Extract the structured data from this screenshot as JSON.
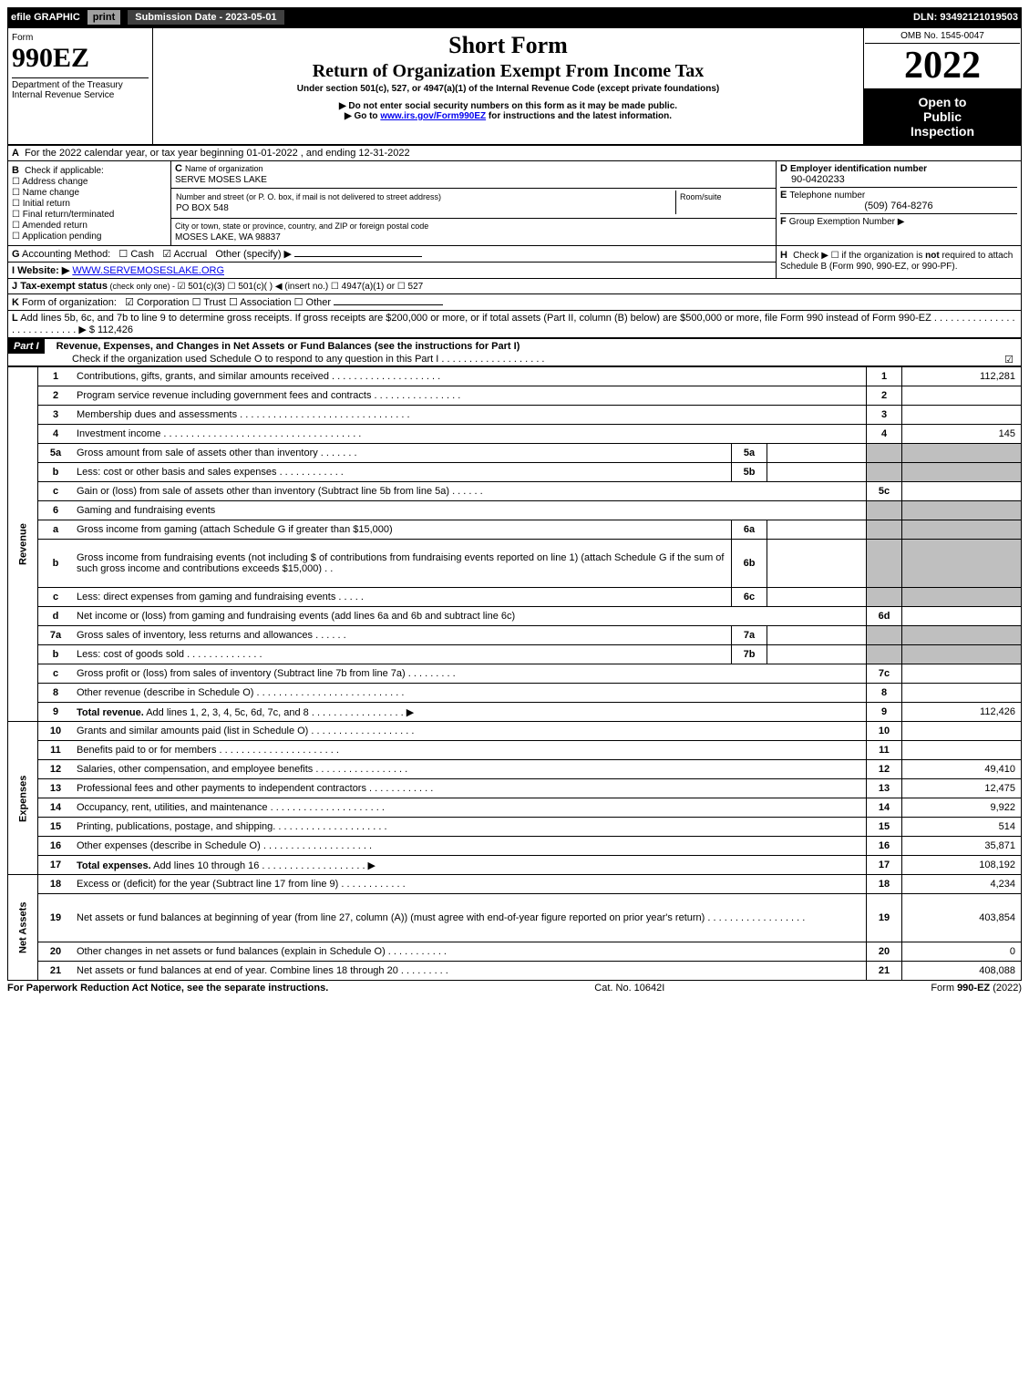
{
  "topbar": {
    "efile": "efile GRAPHIC",
    "print": "print",
    "subdate_label": "Submission Date - ",
    "subdate": "2023-05-01",
    "dln_label": "DLN: ",
    "dln": "93492121019503"
  },
  "header": {
    "form_label": "Form",
    "form_no": "990EZ",
    "dept": "Department of the Treasury",
    "irs": "Internal Revenue Service",
    "title1": "Short Form",
    "title2": "Return of Organization Exempt From Income Tax",
    "sub1": "Under section 501(c), 527, or 4947(a)(1) of the Internal Revenue Code (except private foundations)",
    "sub2": "▶ Do not enter social security numbers on this form as it may be made public.",
    "sub3_pre": "▶ Go to ",
    "sub3_link": "www.irs.gov/Form990EZ",
    "sub3_post": " for instructions and the latest information.",
    "omb": "OMB No. 1545-0047",
    "year": "2022",
    "open1": "Open to",
    "open2": "Public",
    "open3": "Inspection"
  },
  "sectionA": {
    "A": "For the 2022 calendar year, or tax year beginning 01-01-2022 , and ending 12-31-2022",
    "B_label": "Check if applicable:",
    "B_opts": [
      "Address change",
      "Name change",
      "Initial return",
      "Final return/terminated",
      "Amended return",
      "Application pending"
    ],
    "C_label": "Name of organization",
    "C_name": "SERVE MOSES LAKE",
    "C_street_label": "Number and street (or P. O. box, if mail is not delivered to street address)",
    "C_street": "PO BOX 548",
    "C_room_label": "Room/suite",
    "C_city_label": "City or town, state or province, country, and ZIP or foreign postal code",
    "C_city": "MOSES LAKE, WA  98837",
    "D_label": "Employer identification number",
    "D_val": "90-0420233",
    "E_label": "Telephone number",
    "E_val": "(509) 764-8276",
    "F_label": "Group Exemption Number  ▶",
    "G_label": "Accounting Method:",
    "G_opts": [
      "☐ Cash",
      "☑ Accrual",
      "Other (specify) ▶"
    ],
    "H_label": "Check ▶  ☐  if the organization is ",
    "H_not": "not",
    "H_rest": " required to attach Schedule B (Form 990, 990-EZ, or 990-PF).",
    "I_label": "Website: ▶",
    "I_val": "WWW.SERVEMOSESLAKE.ORG",
    "J_label": "Tax-exempt status",
    "J_sub": " (check only one) - ",
    "J_opts": "☑ 501(c)(3)  ☐ 501(c)(   ) ◀ (insert no.)  ☐ 4947(a)(1) or  ☐ 527",
    "K_label": "Form of organization:",
    "K_opts": "☑ Corporation   ☐ Trust   ☐ Association   ☐ Other",
    "L_text": "Add lines 5b, 6c, and 7b to line 9 to determine gross receipts. If gross receipts are $200,000 or more, or if total assets (Part II, column (B) below) are $500,000 or more, file Form 990 instead of Form 990-EZ  . . . . . . . . . . . . . . . . . . . . . . . . . . .  ▶ $",
    "L_val": " 112,426"
  },
  "partI": {
    "label": "Part I",
    "title": "Revenue, Expenses, and Changes in Net Assets or Fund Balances (see the instructions for Part I)",
    "check_line": "Check if the organization used Schedule O to respond to any question in this Part I  . . . . . . . . . . . . . . . . . . .",
    "checked": "☑"
  },
  "sections": {
    "revenue": "Revenue",
    "expenses": "Expenses",
    "netassets": "Net Assets"
  },
  "lines": [
    {
      "n": "1",
      "d": "Contributions, gifts, grants, and similar amounts received  . . . . . . . . . . . . . . . . . . . .",
      "r": "1",
      "v": "112,281"
    },
    {
      "n": "2",
      "d": "Program service revenue including government fees and contracts  . . . . . . . . . . . . . . . .",
      "r": "2",
      "v": ""
    },
    {
      "n": "3",
      "d": "Membership dues and assessments  . . . . . . . . . . . . . . . . . . . . . . . . . . . . . . .",
      "r": "3",
      "v": ""
    },
    {
      "n": "4",
      "d": "Investment income  . . . . . . . . . . . . . . . . . . . . . . . . . . . . . . . . . . . .",
      "r": "4",
      "v": "145"
    },
    {
      "n": "5a",
      "d": "Gross amount from sale of assets other than inventory  . . . . . . .",
      "sub": "5a",
      "subv": "",
      "gray": true
    },
    {
      "n": "b",
      "d": "Less: cost or other basis and sales expenses  . . . . . . . . . . . .",
      "sub": "5b",
      "subv": "",
      "gray": true
    },
    {
      "n": "c",
      "d": "Gain or (loss) from sale of assets other than inventory (Subtract line 5b from line 5a)  . . . . . .",
      "r": "5c",
      "v": ""
    },
    {
      "n": "6",
      "d": "Gaming and fundraising events",
      "gray": true,
      "noboxes": true
    },
    {
      "n": "a",
      "d": "Gross income from gaming (attach Schedule G if greater than $15,000)",
      "sub": "6a",
      "subv": "",
      "gray": true
    },
    {
      "n": "b",
      "d": "Gross income from fundraising events (not including $                         of contributions from fundraising events reported on line 1) (attach Schedule G if the sum of such gross income and contributions exceeds $15,000)    .  .",
      "sub": "6b",
      "subv": "",
      "gray": true,
      "tall": true
    },
    {
      "n": "c",
      "d": "Less: direct expenses from gaming and fundraising events  . . . . .",
      "sub": "6c",
      "subv": "",
      "gray": true
    },
    {
      "n": "d",
      "d": "Net income or (loss) from gaming and fundraising events (add lines 6a and 6b and subtract line 6c)",
      "r": "6d",
      "v": ""
    },
    {
      "n": "7a",
      "d": "Gross sales of inventory, less returns and allowances  . . . . . .",
      "sub": "7a",
      "subv": "",
      "gray": true
    },
    {
      "n": "b",
      "d": "Less: cost of goods sold         .  .  .  .  .  .  .  .  .  .  .  .  .  .",
      "sub": "7b",
      "subv": "",
      "gray": true
    },
    {
      "n": "c",
      "d": "Gross profit or (loss) from sales of inventory (Subtract line 7b from line 7a)  . . . . . . . . .",
      "r": "7c",
      "v": ""
    },
    {
      "n": "8",
      "d": "Other revenue (describe in Schedule O)  . . . . . . . . . . . . . . . . . . . . . . . . . . .",
      "r": "8",
      "v": ""
    },
    {
      "n": "9",
      "d": "<b>Total revenue.</b> Add lines 1, 2, 3, 4, 5c, 6d, 7c, and 8  . . . . . . . . . . . . . . . . .  ▶",
      "r": "9",
      "v": "112,426",
      "bold": true
    }
  ],
  "exp_lines": [
    {
      "n": "10",
      "d": "Grants and similar amounts paid (list in Schedule O)  . . . . . . . . . . . . . . . . . . .",
      "r": "10",
      "v": ""
    },
    {
      "n": "11",
      "d": "Benefits paid to or for members      .  .  .  .  .  .  .  .  .  .  .  .  .  .  .  .  .  .  .  .  .  .",
      "r": "11",
      "v": ""
    },
    {
      "n": "12",
      "d": "Salaries, other compensation, and employee benefits  .  .  .  .  .  .  .  .  .  .  .  .  .  .  .  .  .",
      "r": "12",
      "v": "49,410"
    },
    {
      "n": "13",
      "d": "Professional fees and other payments to independent contractors  .  .  .  .  .  .  .  .  .  .  .  .",
      "r": "13",
      "v": "12,475"
    },
    {
      "n": "14",
      "d": "Occupancy, rent, utilities, and maintenance  .  .  .  .  .  .  .  .  .  .  .  .  .  .  .  .  .  .  .  .  .",
      "r": "14",
      "v": "9,922"
    },
    {
      "n": "15",
      "d": "Printing, publications, postage, and shipping.  .  .  .  .  .  .  .  .  .  .  .  .  .  .  .  .  .  .  .  .",
      "r": "15",
      "v": "514"
    },
    {
      "n": "16",
      "d": "Other expenses (describe in Schedule O)      .  .  .  .  .  .  .  .  .  .  .  .  .  .  .  .  .  .  .  .",
      "r": "16",
      "v": "35,871"
    },
    {
      "n": "17",
      "d": "<b>Total expenses.</b> Add lines 10 through 16      .  .  .  .  .  .  .  .  .  .  .  .  .  .  .  .  .  .  .  ▶",
      "r": "17",
      "v": "108,192",
      "bold": true
    }
  ],
  "na_lines": [
    {
      "n": "18",
      "d": "Excess or (deficit) for the year (Subtract line 17 from line 9)        .  .  .  .  .  .  .  .  .  .  .  .",
      "r": "18",
      "v": "4,234"
    },
    {
      "n": "19",
      "d": "Net assets or fund balances at beginning of year (from line 27, column (A)) (must agree with end-of-year figure reported on prior year's return)  .  .  .  .  .  .  .  .  .  .  .  .  .  .  .  .  .  .",
      "r": "19",
      "v": "403,854",
      "tall": true
    },
    {
      "n": "20",
      "d": "Other changes in net assets or fund balances (explain in Schedule O)  .  .  .  .  .  .  .  .  .  .  .",
      "r": "20",
      "v": "0"
    },
    {
      "n": "21",
      "d": "Net assets or fund balances at end of year. Combine lines 18 through 20  .  .  .  .  .  .  .  .  .",
      "r": "21",
      "v": "408,088"
    }
  ],
  "footer": {
    "left": "For Paperwork Reduction Act Notice, see the separate instructions.",
    "mid": "Cat. No. 10642I",
    "right_pre": "Form ",
    "right_form": "990-EZ",
    "right_post": " (2022)"
  },
  "letters": {
    "A": "A",
    "B": "B",
    "C": "C",
    "D": "D",
    "E": "E",
    "F": "F",
    "G": "G",
    "H": "H",
    "I": "I",
    "J": "J",
    "K": "K",
    "L": "L"
  }
}
